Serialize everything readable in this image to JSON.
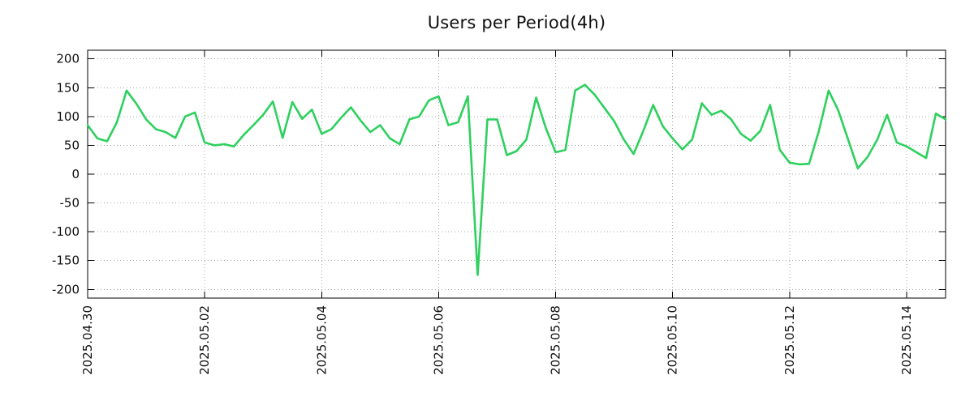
{
  "chart_data": {
    "type": "line",
    "title": "Users per Period(4h)",
    "x_interval": "4h",
    "series_color": "#2ed05e",
    "grid_color": "#a8a8a8",
    "axis_color": "#000000",
    "text_color": "#111111",
    "background_color": "#ffffff",
    "ylim": [
      -200,
      200
    ],
    "yticks": [
      -200,
      -150,
      -100,
      -50,
      0,
      50,
      100,
      150,
      200
    ],
    "xticks": [
      {
        "index": 0,
        "label": "2025.04.30"
      },
      {
        "index": 12,
        "label": "2025.05.02"
      },
      {
        "index": 24,
        "label": "2025.05.04"
      },
      {
        "index": 36,
        "label": "2025.05.06"
      },
      {
        "index": 48,
        "label": "2025.05.08"
      },
      {
        "index": 60,
        "label": "2025.05.10"
      },
      {
        "index": 72,
        "label": "2025.05.12"
      },
      {
        "index": 84,
        "label": "2025.05.14"
      }
    ],
    "values": [
      85,
      62,
      57,
      90,
      145,
      122,
      95,
      78,
      73,
      63,
      100,
      107,
      55,
      50,
      52,
      48,
      68,
      85,
      103,
      126,
      63,
      125,
      96,
      112,
      70,
      78,
      98,
      116,
      93,
      73,
      85,
      62,
      52,
      95,
      100,
      128,
      135,
      85,
      90,
      135,
      -175,
      95,
      95,
      33,
      40,
      60,
      133,
      80,
      38,
      42,
      145,
      155,
      138,
      115,
      92,
      60,
      35,
      75,
      120,
      83,
      62,
      43,
      60,
      123,
      103,
      110,
      95,
      70,
      58,
      75,
      120,
      42,
      20,
      17,
      18,
      75,
      145,
      110,
      60,
      10,
      30,
      60,
      103,
      55,
      48,
      38,
      28,
      105,
      95
    ],
    "legend": null
  }
}
